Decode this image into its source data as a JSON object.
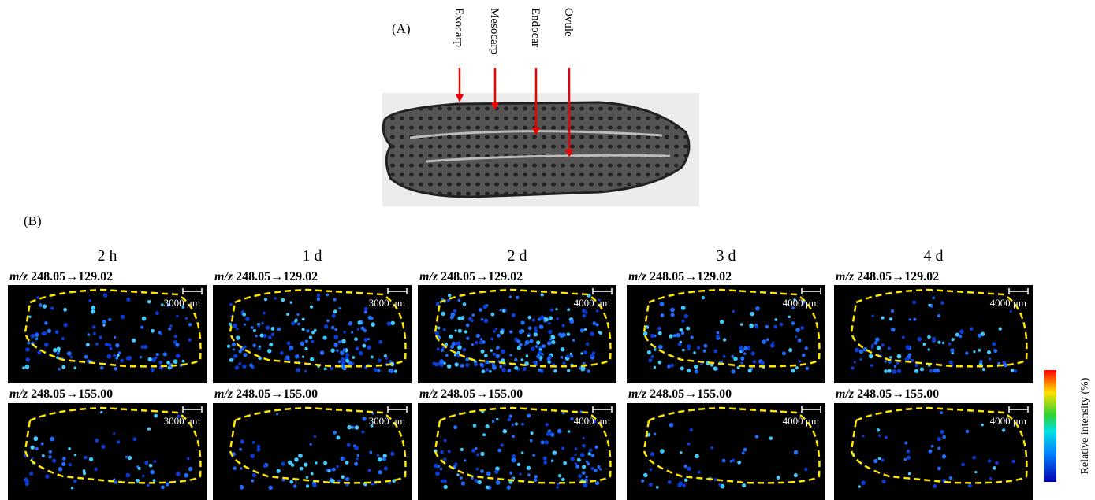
{
  "panel_a": {
    "label": "(A)",
    "tissues": [
      "Exocarp",
      "Mesocarp",
      "Endocar",
      "Ovule"
    ]
  },
  "panel_b": {
    "label": "(B)",
    "columns": [
      {
        "time": "2 h",
        "scale": "3000  μm"
      },
      {
        "time": "1 d",
        "scale": "3000  μm"
      },
      {
        "time": "2 d",
        "scale": "4000  μm"
      },
      {
        "time": "3 d",
        "scale": "4000  μm"
      },
      {
        "time": "4 d",
        "scale": "4000  μm"
      }
    ],
    "rows": [
      {
        "prefix": "m/z",
        "transition": "248.05→129.02"
      },
      {
        "prefix": "m/z",
        "transition": "248.05→155.00"
      }
    ],
    "colorbar_label": "Relative intensity (%)"
  }
}
